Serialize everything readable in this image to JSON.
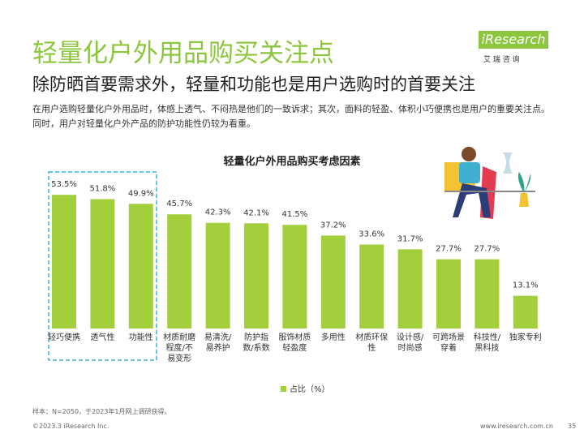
{
  "header": {
    "title": "轻量化户外用品购买关注点",
    "subtitle": "除防晒首要需求外，轻量和功能也是用户选购时的首要关注",
    "description": "在用户选购轻量化户外用品时，体感上透气、不闷热是他们的一致诉求；其次，面料的轻盈、体积小巧便携也是用户的重要关注点。同时，用户对轻量化户外产品的防护功能性仍较为看重。"
  },
  "logo": {
    "name": "iResearch",
    "tagline": "艾 瑞 咨 询"
  },
  "chart_data": {
    "type": "bar",
    "title": "轻量化户外用品购买考虑因素",
    "categories": [
      "轻巧便携",
      "透气性",
      "功能性",
      "材质耐磨程度/不易变形",
      "易清洗/易养护",
      "防护指数/系数",
      "服饰材质轻盈度",
      "多用性",
      "材质环保性",
      "设计感/时尚感",
      "可跨场景穿着",
      "科技性/黑科技",
      "独家专利"
    ],
    "series": [
      {
        "name": "占比（%）",
        "color": "#a3cf3c",
        "values": [
          53.5,
          51.8,
          49.9,
          45.7,
          42.3,
          42.1,
          41.5,
          37.2,
          33.6,
          31.7,
          27.7,
          27.7,
          13.1
        ],
        "value_labels": [
          "53.5%",
          "51.8%",
          "49.9%",
          "45.7%",
          "42.3%",
          "42.1%",
          "41.5%",
          "37.2%",
          "33.6%",
          "31.7%",
          "27.7%",
          "27.7%",
          "13.1%"
        ]
      }
    ],
    "legend": "bottom"
  },
  "footer": {
    "note": "样本：N=2050，于2023年1月网上调研获得。",
    "copyright": "©2023.3 iResearch Inc.",
    "url": "www.iresearch.com.cn",
    "page": "35"
  }
}
